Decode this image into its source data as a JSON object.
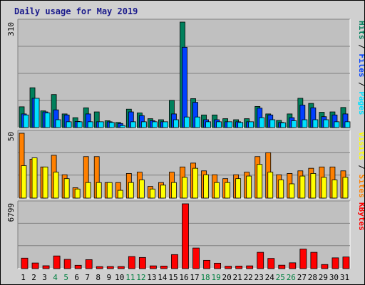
{
  "title": "Daily usage for May 2019",
  "colors": {
    "background": "#d0d0d0",
    "panel": "#c0c0c0",
    "hits": "#00805c",
    "files": "#0040ff",
    "pages": "#00e0ff",
    "visits": "#ffff00",
    "sites": "#ff8000",
    "kbytes": "#ff0000",
    "title": "#1a1a8c",
    "weekend_day": "#008040"
  },
  "chart_data": [
    {
      "type": "bar",
      "panel": "top",
      "ymax_label": "310",
      "ymax": 310,
      "legend": [
        {
          "name": "Pages",
          "color": "#00e0ff"
        },
        {
          "name": "Files",
          "color": "#0040ff"
        },
        {
          "name": "Hits",
          "color": "#00805c"
        }
      ],
      "legend_separator": " / ",
      "categories": [
        "1",
        "2",
        "3",
        "4",
        "5",
        "6",
        "7",
        "8",
        "9",
        "10",
        "11",
        "12",
        "13",
        "14",
        "15",
        "16",
        "17",
        "18",
        "19",
        "20",
        "21",
        "22",
        "23",
        "24",
        "25",
        "26",
        "27",
        "28",
        "29",
        "30",
        "31"
      ],
      "series": [
        {
          "name": "Hits",
          "values": [
            61,
            117,
            49,
            97,
            40,
            29,
            58,
            46,
            20,
            15,
            54,
            43,
            26,
            23,
            80,
            310,
            85,
            37,
            37,
            26,
            23,
            26,
            62,
            40,
            21,
            40,
            86,
            71,
            45,
            46,
            59
          ]
        },
        {
          "name": "Files",
          "values": [
            40,
            86,
            46,
            52,
            37,
            18,
            40,
            17,
            17,
            12,
            46,
            35,
            20,
            17,
            40,
            236,
            74,
            23,
            23,
            17,
            17,
            17,
            57,
            37,
            15,
            29,
            66,
            58,
            32,
            37,
            40
          ]
        },
        {
          "name": "Pages",
          "values": [
            37,
            86,
            43,
            23,
            17,
            17,
            17,
            17,
            15,
            6,
            17,
            17,
            17,
            17,
            23,
            31,
            31,
            17,
            17,
            17,
            15,
            17,
            29,
            23,
            14,
            20,
            23,
            23,
            23,
            17,
            17
          ]
        }
      ]
    },
    {
      "type": "bar",
      "panel": "middle",
      "ymax_label": "50",
      "ymax": 50,
      "legend": [
        {
          "name": "Sites",
          "color": "#ff8000"
        },
        {
          "name": "Visits",
          "color": "#ffff00"
        }
      ],
      "legend_separator": " / ",
      "categories": [
        "1",
        "2",
        "3",
        "4",
        "5",
        "6",
        "7",
        "8",
        "9",
        "10",
        "11",
        "12",
        "13",
        "14",
        "15",
        "16",
        "17",
        "18",
        "19",
        "20",
        "21",
        "22",
        "23",
        "24",
        "25",
        "26",
        "27",
        "28",
        "29",
        "30",
        "31"
      ],
      "series": [
        {
          "name": "Sites",
          "values": [
            50,
            30,
            24,
            33,
            18,
            8,
            32,
            32,
            12,
            12,
            19,
            20,
            9,
            12,
            20,
            24,
            27,
            21,
            18,
            15,
            18,
            20,
            32,
            35,
            18,
            19,
            21,
            23,
            24,
            24,
            21
          ]
        },
        {
          "name": "Visits",
          "values": [
            25,
            31,
            24,
            20,
            15,
            7,
            12,
            12,
            12,
            6,
            12,
            14,
            7,
            10,
            12,
            16,
            23,
            18,
            12,
            12,
            15,
            17,
            26,
            20,
            14,
            11,
            17,
            19,
            16,
            14,
            16
          ]
        }
      ]
    },
    {
      "type": "bar",
      "panel": "bottom",
      "ymax_label": "6799",
      "ymax": 6799,
      "legend": [
        {
          "name": "KBytes",
          "color": "#ff0000"
        }
      ],
      "legend_separator": "",
      "categories": [
        "1",
        "2",
        "3",
        "4",
        "5",
        "6",
        "7",
        "8",
        "9",
        "10",
        "11",
        "12",
        "13",
        "14",
        "15",
        "16",
        "17",
        "18",
        "19",
        "20",
        "21",
        "22",
        "23",
        "24",
        "25",
        "26",
        "27",
        "28",
        "29",
        "30",
        "31"
      ],
      "series": [
        {
          "name": "KBytes",
          "values": [
            1100,
            590,
            300,
            1330,
            970,
            350,
            940,
            210,
            220,
            220,
            1270,
            1170,
            290,
            270,
            1470,
            6799,
            2160,
            870,
            570,
            250,
            270,
            290,
            1710,
            1070,
            360,
            610,
            2050,
            1710,
            430,
            1130,
            1220
          ]
        }
      ]
    }
  ],
  "x_labels": {
    "days": [
      "1",
      "2",
      "3",
      "4",
      "5",
      "6",
      "7",
      "8",
      "9",
      "10",
      "11",
      "12",
      "13",
      "14",
      "15",
      "16",
      "17",
      "18",
      "19",
      "20",
      "21",
      "22",
      "23",
      "24",
      "25",
      "26",
      "27",
      "28",
      "29",
      "30",
      "31"
    ],
    "weekend_days": [
      "4",
      "5",
      "11",
      "12",
      "18",
      "19",
      "25",
      "26"
    ]
  }
}
